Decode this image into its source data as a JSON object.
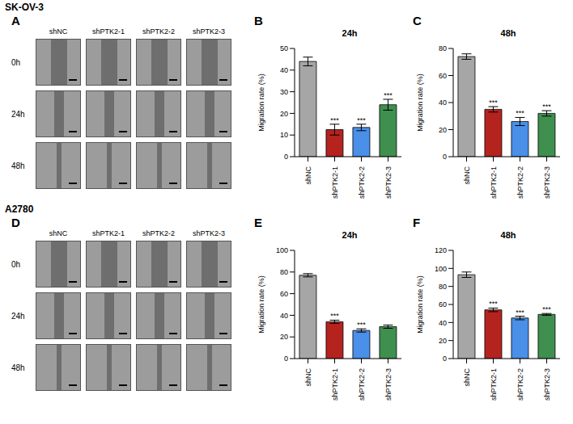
{
  "sections": [
    {
      "title": "SK-OV-3",
      "image_panel": {
        "panel": "A",
        "columns": [
          "shNC",
          "shPTK2-1",
          "shPTK2-2",
          "shPTK2-3"
        ],
        "rows": [
          "0h",
          "24h",
          "48h"
        ]
      }
    },
    {
      "title": "A2780",
      "image_panel": {
        "panel": "D",
        "columns": [
          "shNC",
          "shPTK2-1",
          "shPTK2-2",
          "shPTK2-3"
        ],
        "rows": [
          "0h",
          "24h",
          "48h"
        ]
      }
    }
  ],
  "chart_data": [
    {
      "panel": "B",
      "type": "bar",
      "title": "24h",
      "y_label": "Migration rate (%)",
      "categories": [
        "shNC",
        "shPTK2-1",
        "shPTK2-2",
        "shPTK2-3"
      ],
      "values": [
        44,
        12.5,
        13.5,
        24
      ],
      "errors": [
        2,
        2.5,
        1.5,
        2.5
      ],
      "significance": [
        null,
        "***",
        "***",
        "***"
      ],
      "colors": [
        "#a6a6a6",
        "#b5231f",
        "#4a8fe8",
        "#3f8f4f"
      ],
      "ylim": [
        0,
        50
      ],
      "yticks": [
        0,
        10,
        20,
        30,
        40,
        50
      ]
    },
    {
      "panel": "C",
      "type": "bar",
      "title": "48h",
      "y_label": "Migration rate (%)",
      "categories": [
        "shNC",
        "shPTK2-1",
        "shPTK2-2",
        "shPTK2-3"
      ],
      "values": [
        74,
        35,
        26,
        32
      ],
      "errors": [
        2,
        2,
        3,
        2
      ],
      "significance": [
        null,
        "***",
        "***",
        "***"
      ],
      "colors": [
        "#a6a6a6",
        "#b5231f",
        "#4a8fe8",
        "#3f8f4f"
      ],
      "ylim": [
        0,
        80
      ],
      "yticks": [
        0,
        20,
        40,
        60,
        80
      ]
    },
    {
      "panel": "E",
      "type": "bar",
      "title": "24h",
      "y_label": "Migration rate (%)",
      "categories": [
        "shNC",
        "shPTK2-1",
        "shPTK2-2",
        "shPTK2-3"
      ],
      "values": [
        77,
        34,
        26,
        29.5
      ],
      "errors": [
        1.5,
        1.5,
        1.5,
        1.5
      ],
      "significance": [
        null,
        "***",
        "***",
        null
      ],
      "colors": [
        "#a6a6a6",
        "#b5231f",
        "#4a8fe8",
        "#3f8f4f"
      ],
      "ylim": [
        0,
        100
      ],
      "yticks": [
        0,
        20,
        40,
        60,
        80,
        100
      ]
    },
    {
      "panel": "F",
      "type": "bar",
      "title": "48h",
      "y_label": "Migration rate (%)",
      "categories": [
        "shNC",
        "shPTK2-1",
        "shPTK2-2",
        "shPTK2-3"
      ],
      "values": [
        93,
        54,
        45,
        49
      ],
      "errors": [
        3,
        2,
        2,
        1
      ],
      "significance": [
        null,
        "***",
        "***",
        "***"
      ],
      "colors": [
        "#a6a6a6",
        "#b5231f",
        "#4a8fe8",
        "#3f8f4f"
      ],
      "ylim": [
        0,
        120
      ],
      "yticks": [
        0,
        20,
        40,
        60,
        80,
        100,
        120
      ]
    }
  ]
}
